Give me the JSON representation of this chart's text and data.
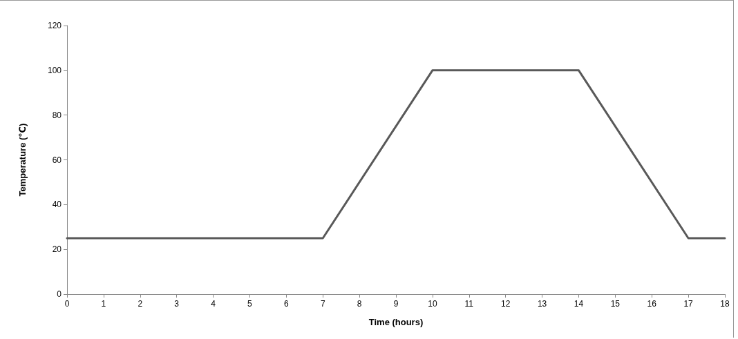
{
  "chart_data": {
    "type": "line",
    "xlabel": "Time (hours)",
    "ylabel": "Temperature (℃)",
    "x": [
      0,
      7,
      10,
      14,
      17,
      18
    ],
    "series": [
      {
        "color": "#595959",
        "values": [
          25,
          25,
          100,
          100,
          25,
          25
        ]
      }
    ],
    "xlim": [
      0,
      18
    ],
    "xticks": [
      0,
      1,
      2,
      3,
      4,
      5,
      6,
      7,
      8,
      9,
      10,
      11,
      12,
      13,
      14,
      15,
      16,
      17,
      18
    ],
    "ylim": [
      0,
      120
    ],
    "yticks": [
      0,
      20,
      40,
      60,
      80,
      100,
      120
    ],
    "grid": false,
    "marker": "none",
    "line_style": "solid"
  }
}
